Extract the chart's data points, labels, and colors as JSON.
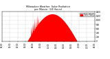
{
  "bg_color": "#ffffff",
  "fill_color": "#ff0000",
  "line_color": "#dd0000",
  "grid_color": "#bbbbbb",
  "x_min": 0,
  "x_max": 1440,
  "y_min": 0,
  "y_max": 1400,
  "legend_label": "Solar Rad",
  "legend_color": "#ff0000",
  "sunrise": 390,
  "sunset": 1170,
  "peak_minute": 660,
  "peak_value": 1300
}
